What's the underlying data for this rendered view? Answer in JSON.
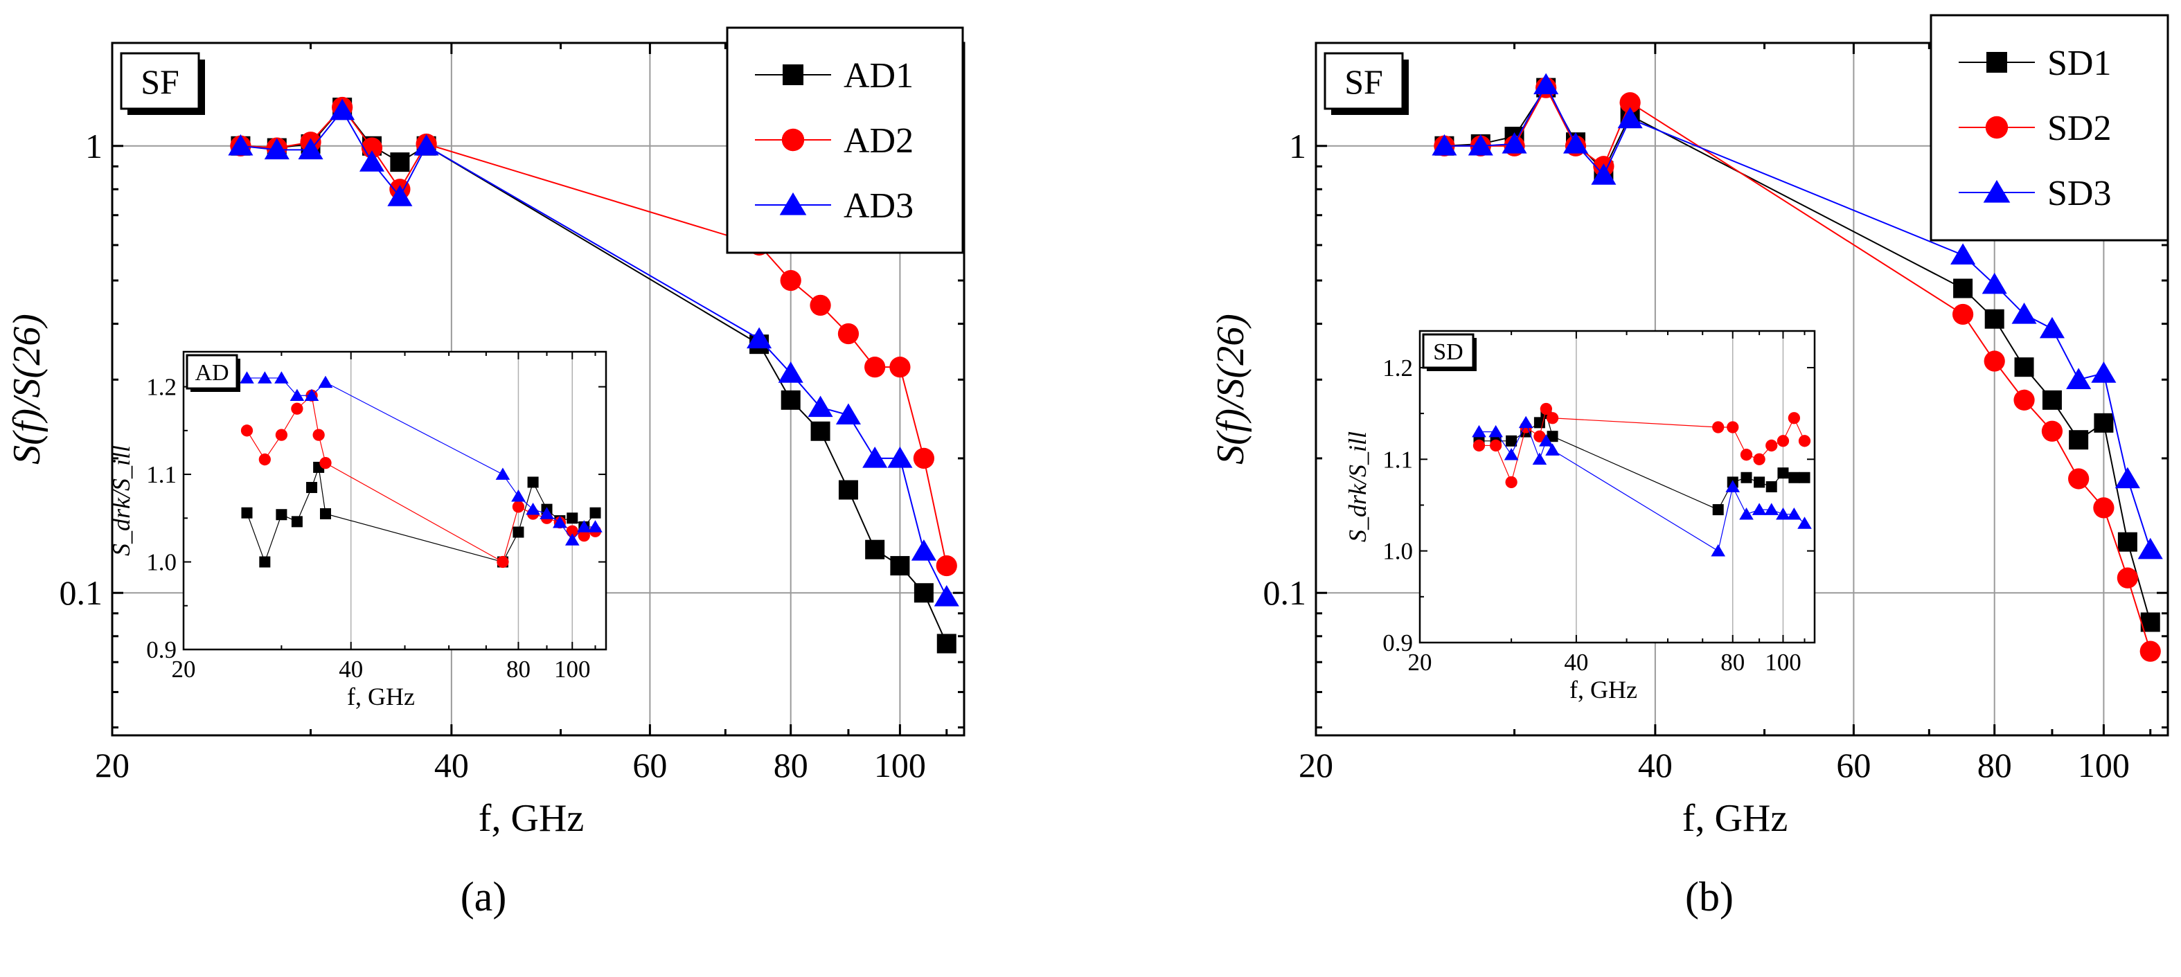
{
  "chart_data": [
    {
      "type": "line",
      "panel_label": "(a)",
      "tag": "SF",
      "xlabel": "f, GHz",
      "ylabel": "S(f)/S(26)",
      "xscale": "log",
      "yscale": "log",
      "xlim": [
        20,
        114
      ],
      "ylim": [
        0.048,
        1.7
      ],
      "xticks": [
        20,
        40,
        60,
        80,
        100
      ],
      "yticks": [
        0.1,
        1
      ],
      "ytick_labels": [
        "0.1",
        "1"
      ],
      "legend_position": "top-right",
      "series": [
        {
          "name": "AD1",
          "color": "#000000",
          "marker": "square",
          "x": [
            26,
            28,
            30,
            32,
            34,
            36,
            38,
            75,
            80,
            85,
            90,
            95,
            100,
            105,
            110
          ],
          "y": [
            1.0,
            0.99,
            1.01,
            1.22,
            1.0,
            0.92,
            1.0,
            0.36,
            0.27,
            0.23,
            0.17,
            0.125,
            0.115,
            0.1,
            0.077
          ]
        },
        {
          "name": "AD2",
          "color": "#ff0000",
          "marker": "circle",
          "x": [
            26,
            28,
            30,
            32,
            34,
            36,
            38,
            75,
            80,
            85,
            90,
            95,
            100,
            105,
            110
          ],
          "y": [
            1.0,
            0.99,
            1.02,
            1.22,
            0.99,
            0.8,
            1.01,
            0.6,
            0.5,
            0.44,
            0.38,
            0.32,
            0.32,
            0.2,
            0.115
          ]
        },
        {
          "name": "AD3",
          "color": "#0000ff",
          "marker": "triangle",
          "x": [
            26,
            28,
            30,
            32,
            34,
            36,
            38,
            75,
            80,
            85,
            90,
            95,
            100,
            105,
            110
          ],
          "y": [
            1.0,
            0.98,
            0.98,
            1.2,
            0.92,
            0.77,
            1.0,
            0.37,
            0.31,
            0.26,
            0.25,
            0.2,
            0.2,
            0.124,
            0.098
          ]
        }
      ],
      "inset": {
        "tag": "AD",
        "xlabel": "f, GHz",
        "ylabel": "S_drk/S_ill",
        "xscale": "log",
        "xlim": [
          20,
          115
        ],
        "ylim": [
          0.9,
          1.24
        ],
        "xticks": [
          20,
          40,
          80,
          100
        ],
        "yticks": [
          0.9,
          1.0,
          1.1,
          1.2
        ],
        "ytick_labels": [
          "0.9",
          "1.0",
          "1.1",
          "1.2"
        ],
        "series": [
          {
            "name": "AD1",
            "color": "#000000",
            "marker": "square",
            "x": [
              26,
              28,
              30,
              32,
              34,
              35,
              36,
              75,
              80,
              85,
              90,
              95,
              100,
              105,
              110
            ],
            "y": [
              1.056,
              1.0,
              1.054,
              1.046,
              1.085,
              1.108,
              1.055,
              1.0,
              1.034,
              1.091,
              1.06,
              1.047,
              1.05,
              1.04,
              1.056
            ]
          },
          {
            "name": "AD2",
            "color": "#ff0000",
            "marker": "circle",
            "x": [
              26,
              28,
              30,
              32,
              34,
              35,
              36,
              75,
              80,
              85,
              90,
              95,
              100,
              105,
              110
            ],
            "y": [
              1.15,
              1.117,
              1.145,
              1.175,
              1.19,
              1.145,
              1.113,
              1.0,
              1.063,
              1.055,
              1.05,
              1.045,
              1.035,
              1.03,
              1.035
            ]
          },
          {
            "name": "AD3",
            "color": "#0000ff",
            "marker": "triangle",
            "x": [
              26,
              28,
              30,
              32,
              34,
              36,
              75,
              80,
              85,
              90,
              95,
              100,
              105,
              110
            ],
            "y": [
              1.21,
              1.21,
              1.21,
              1.19,
              1.19,
              1.205,
              1.1,
              1.075,
              1.06,
              1.055,
              1.045,
              1.025,
              1.04,
              1.04
            ]
          }
        ]
      }
    },
    {
      "type": "line",
      "panel_label": "(b)",
      "tag": "SF",
      "xlabel": "f, GHz",
      "ylabel": "S(f)/S(26)",
      "xscale": "log",
      "yscale": "log",
      "xlim": [
        20,
        114
      ],
      "ylim": [
        0.048,
        1.7
      ],
      "xticks": [
        20,
        40,
        60,
        80,
        100
      ],
      "yticks": [
        0.1,
        1
      ],
      "ytick_labels": [
        "0.1",
        "1"
      ],
      "legend_position": "top-right",
      "series": [
        {
          "name": "SD1",
          "color": "#000000",
          "marker": "square",
          "x": [
            26,
            28,
            30,
            32,
            34,
            36,
            38,
            75,
            80,
            85,
            90,
            95,
            100,
            105,
            110
          ],
          "y": [
            1.0,
            1.01,
            1.05,
            1.35,
            1.02,
            0.88,
            1.17,
            0.48,
            0.41,
            0.32,
            0.27,
            0.22,
            0.24,
            0.13,
            0.086
          ]
        },
        {
          "name": "SD2",
          "color": "#ff0000",
          "marker": "circle",
          "x": [
            26,
            28,
            30,
            32,
            34,
            36,
            38,
            75,
            80,
            85,
            90,
            95,
            100,
            105,
            110
          ],
          "y": [
            1.0,
            1.0,
            1.0,
            1.35,
            1.0,
            0.9,
            1.25,
            0.42,
            0.33,
            0.27,
            0.23,
            0.18,
            0.155,
            0.108,
            0.074
          ]
        },
        {
          "name": "SD3",
          "color": "#0000ff",
          "marker": "triangle",
          "x": [
            26,
            28,
            30,
            32,
            34,
            36,
            38,
            75,
            80,
            85,
            90,
            95,
            100,
            105,
            110
          ],
          "y": [
            1.0,
            1.0,
            1.01,
            1.37,
            1.01,
            0.86,
            1.15,
            0.57,
            0.49,
            0.42,
            0.39,
            0.3,
            0.31,
            0.18,
            0.125
          ]
        }
      ],
      "inset": {
        "tag": "SD",
        "xlabel": "f, GHz",
        "ylabel": "S_drk/S_ill",
        "xscale": "log",
        "xlim": [
          20,
          115
        ],
        "ylim": [
          0.9,
          1.24
        ],
        "xticks": [
          20,
          40,
          80,
          100
        ],
        "yticks": [
          0.9,
          1.0,
          1.1,
          1.2
        ],
        "ytick_labels": [
          "0.9",
          "1.0",
          "1.1",
          "1.2"
        ],
        "series": [
          {
            "name": "SD1",
            "color": "#000000",
            "marker": "square",
            "x": [
              26,
              28,
              30,
              32,
              34,
              35,
              36,
              75,
              80,
              85,
              90,
              95,
              100,
              105,
              110
            ],
            "y": [
              1.12,
              1.12,
              1.12,
              1.13,
              1.14,
              1.15,
              1.125,
              1.045,
              1.075,
              1.08,
              1.075,
              1.07,
              1.085,
              1.08,
              1.08
            ]
          },
          {
            "name": "SD2",
            "color": "#ff0000",
            "marker": "circle",
            "x": [
              26,
              28,
              30,
              32,
              34,
              35,
              36,
              75,
              80,
              85,
              90,
              95,
              100,
              105,
              110
            ],
            "y": [
              1.115,
              1.115,
              1.075,
              1.135,
              1.125,
              1.155,
              1.145,
              1.135,
              1.135,
              1.105,
              1.1,
              1.115,
              1.12,
              1.145,
              1.12
            ]
          },
          {
            "name": "SD3",
            "color": "#0000ff",
            "marker": "triangle",
            "x": [
              26,
              28,
              30,
              32,
              34,
              35,
              36,
              75,
              80,
              85,
              90,
              95,
              100,
              105,
              110
            ],
            "y": [
              1.13,
              1.13,
              1.105,
              1.14,
              1.1,
              1.12,
              1.11,
              1.0,
              1.07,
              1.04,
              1.045,
              1.045,
              1.04,
              1.04,
              1.03
            ]
          }
        ]
      }
    }
  ]
}
